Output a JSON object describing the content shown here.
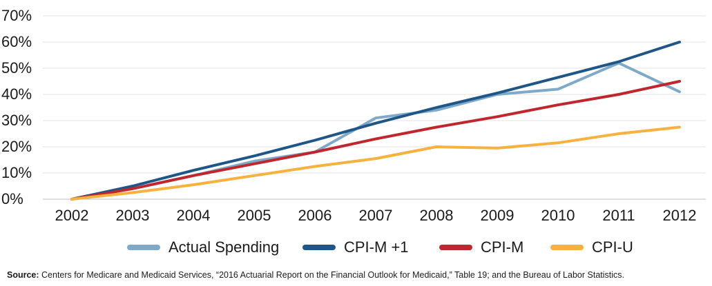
{
  "chart_data": {
    "type": "line",
    "title": "",
    "xlabel": "",
    "ylabel": "",
    "categories": [
      "2002",
      "2003",
      "2004",
      "2005",
      "2006",
      "2007",
      "2008",
      "2009",
      "2010",
      "2011",
      "2012"
    ],
    "y_ticks": [
      "0%",
      "10%",
      "20%",
      "30%",
      "40%",
      "50%",
      "60%",
      "70%"
    ],
    "ylim": [
      0,
      70
    ],
    "grid": true,
    "legend_position": "bottom",
    "series": [
      {
        "name": "Actual Spending",
        "color": "#7fa9c8",
        "values": [
          0,
          4,
          9,
          14.5,
          18,
          31,
          34,
          40,
          42,
          52,
          41
        ]
      },
      {
        "name": "CPI-M +1",
        "color": "#1f5688",
        "values": [
          0,
          5,
          11,
          16.5,
          22.5,
          29,
          35,
          40.5,
          46.5,
          52.5,
          60
        ]
      },
      {
        "name": "CPI-M",
        "color": "#c0262d",
        "values": [
          0,
          4,
          9,
          13.5,
          18,
          23,
          27.5,
          31.5,
          36,
          40,
          45
        ]
      },
      {
        "name": "CPI-U",
        "color": "#f6b13e",
        "values": [
          0,
          2.5,
          5.5,
          9,
          12.5,
          15.5,
          20,
          19.5,
          21.5,
          25,
          27.5
        ]
      }
    ]
  },
  "source": {
    "label": "Source:",
    "text": " Centers for Medicare and Medicaid Services, “2016 Actuarial Report on the Financial Outlook for Medicaid,” Table 19; and the Bureau of Labor Statistics."
  }
}
